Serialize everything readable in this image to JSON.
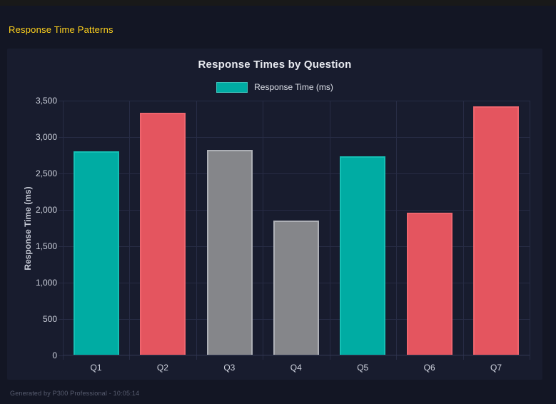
{
  "header": {
    "title": "Response Time Patterns",
    "title_color": "#ffd21e"
  },
  "footer": {
    "text": "Generated by P300 Professional - 10:05:14"
  },
  "chart_data": {
    "type": "bar",
    "title": "Response Times by Question",
    "series_name": "Response Time (ms)",
    "legend_position": "top",
    "xlabel": "",
    "ylabel": "Response Time (ms)",
    "categories": [
      "Q1",
      "Q2",
      "Q3",
      "Q4",
      "Q5",
      "Q6",
      "Q7"
    ],
    "values": [
      2790,
      3320,
      2810,
      1845,
      2725,
      1950,
      3410
    ],
    "bar_color_keys": [
      "teal",
      "red",
      "gray",
      "gray",
      "teal",
      "red",
      "red"
    ],
    "palette": {
      "teal": {
        "fill": "#00aca3",
        "border": "#15c0b5"
      },
      "red": {
        "fill": "#e4555f",
        "border": "#ef656e"
      },
      "gray": {
        "fill": "#85868a",
        "border": "#aeb0b6"
      }
    },
    "legend_swatch_color": "#00aca3",
    "ylim": [
      0,
      3500
    ],
    "ytick_step": 500,
    "ytick_labels": [
      "0",
      "500",
      "1,000",
      "1,500",
      "2,000",
      "2,500",
      "3,000",
      "3,500"
    ],
    "grid": true
  }
}
